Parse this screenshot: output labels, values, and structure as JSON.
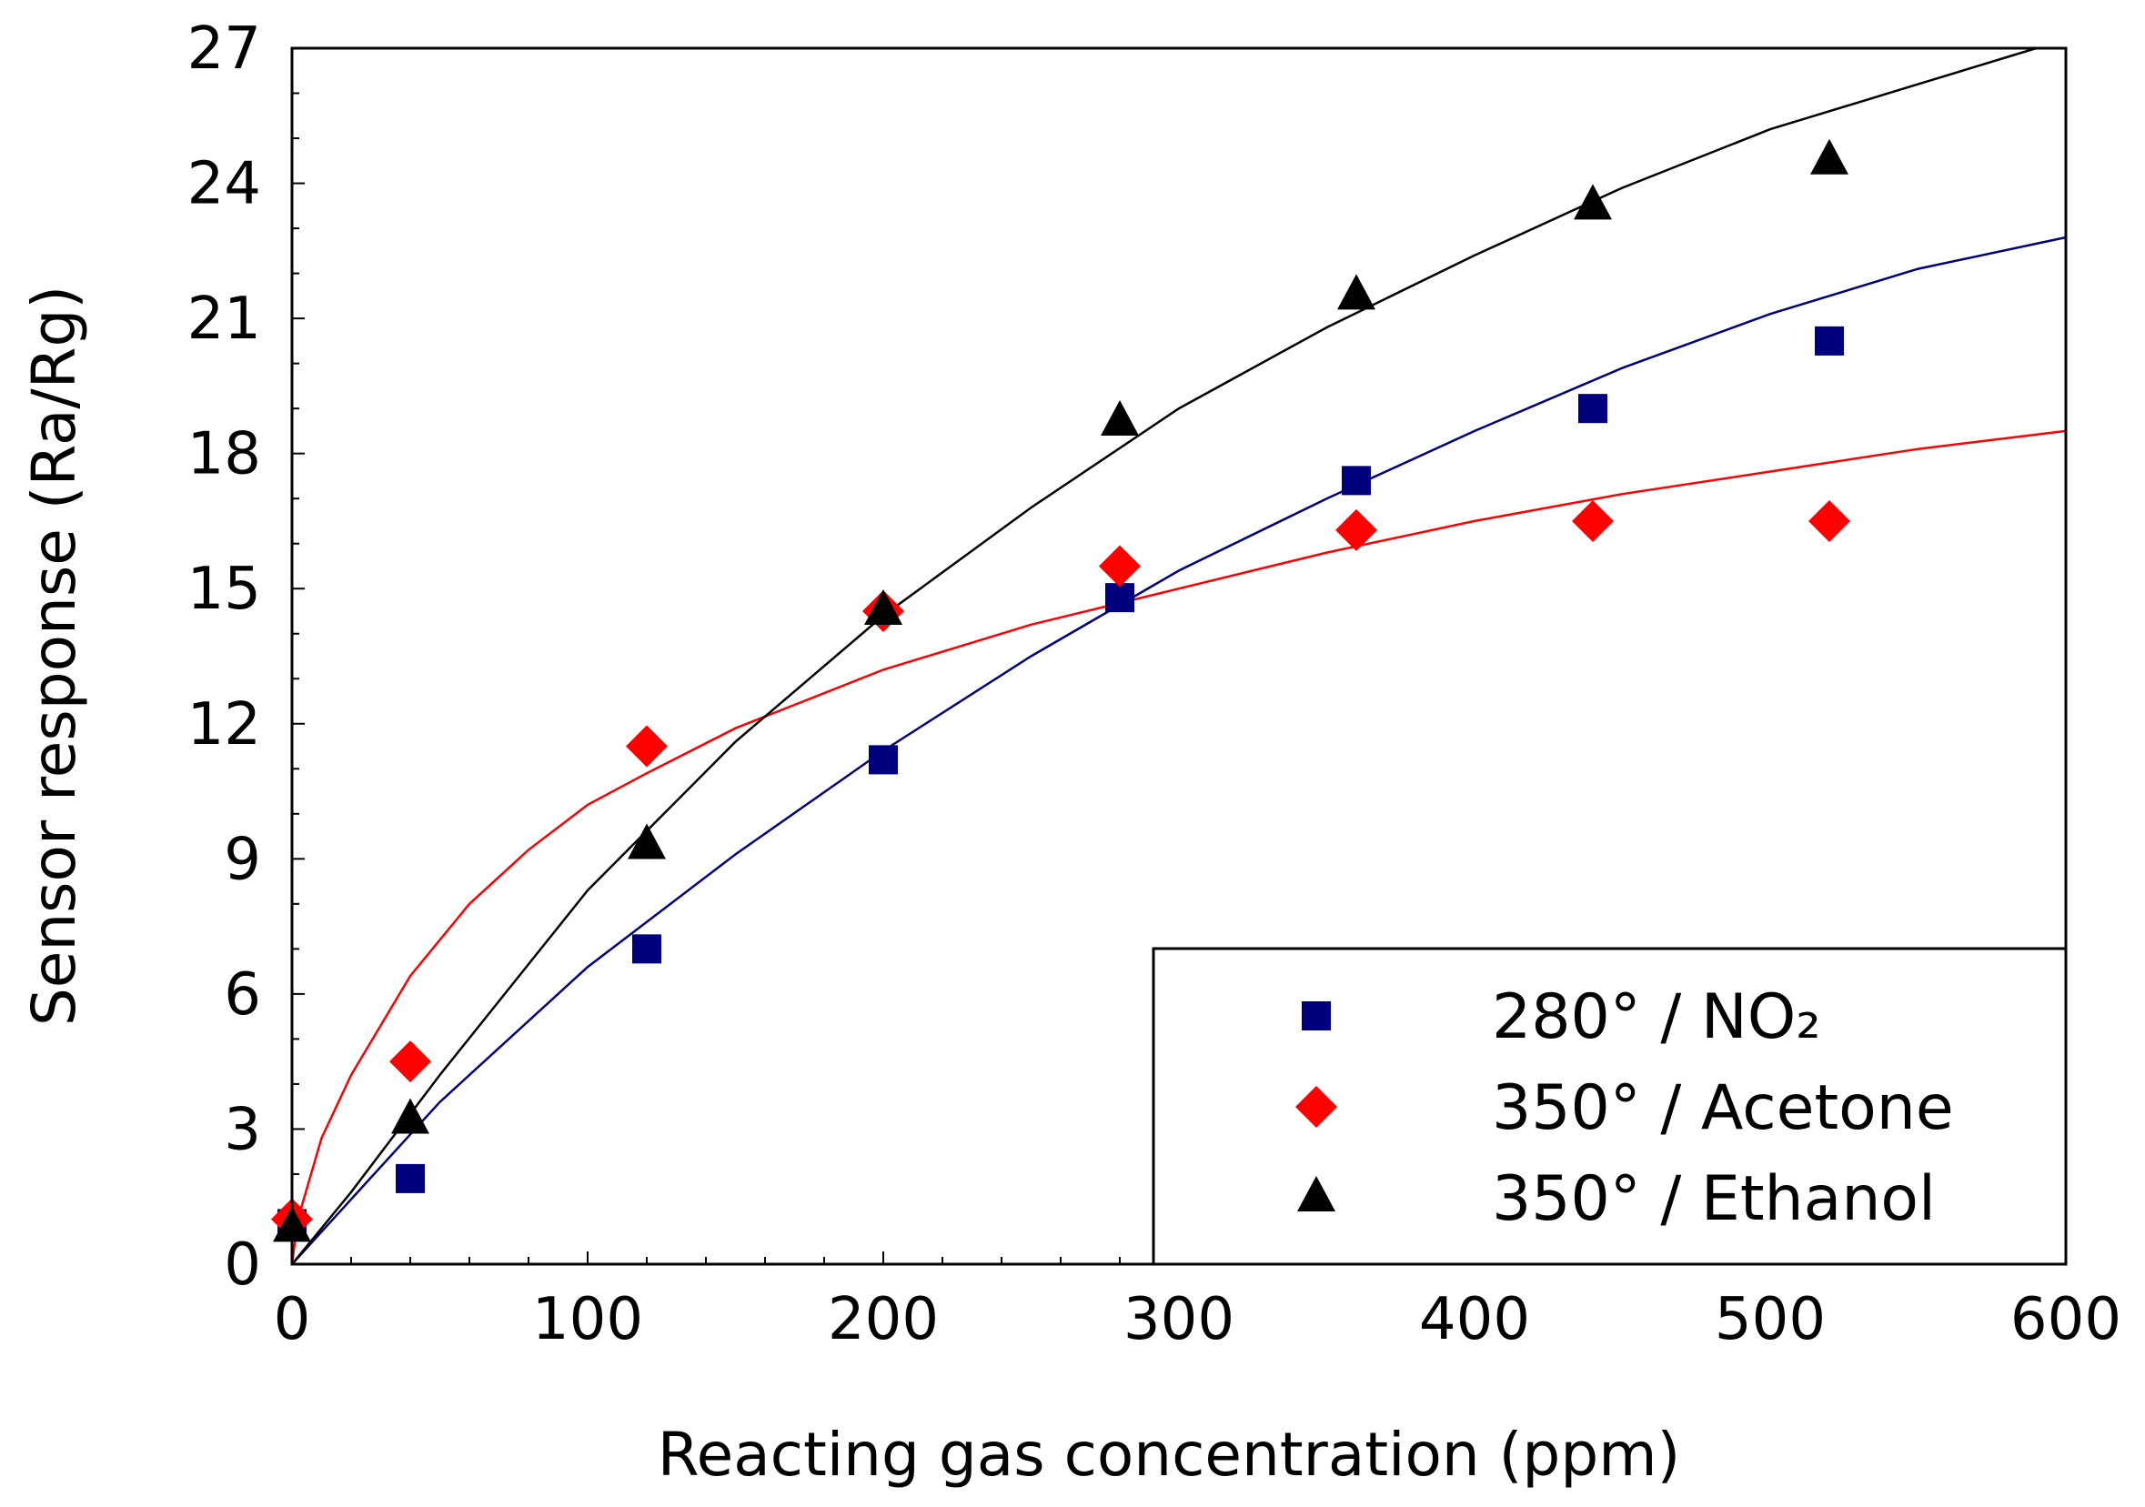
{
  "chart_data": {
    "type": "scatter",
    "title": "",
    "xlabel": "Reacting gas concentration (ppm)",
    "ylabel": "Sensor response (Ra/Rg)",
    "xlim": [
      0,
      600
    ],
    "ylim": [
      0,
      27
    ],
    "xticks": [
      "0",
      "100",
      "200",
      "300",
      "400",
      "500",
      "600"
    ],
    "yticks": [
      "0",
      "3",
      "6",
      "9",
      "12",
      "15",
      "18",
      "21",
      "24",
      "27"
    ],
    "legend_position": "bottom-right",
    "series": [
      {
        "name": "280° / NO₂",
        "marker": "square",
        "color": "#00007f",
        "x": [
          0,
          40,
          120,
          200,
          280,
          360,
          440,
          520
        ],
        "y": [
          0.9,
          1.9,
          7.0,
          11.2,
          14.8,
          17.4,
          19.0,
          20.5
        ],
        "fit": [
          [
            0,
            0.0
          ],
          [
            50,
            3.6
          ],
          [
            100,
            6.6
          ],
          [
            150,
            9.1
          ],
          [
            200,
            11.4
          ],
          [
            250,
            13.5
          ],
          [
            300,
            15.4
          ],
          [
            350,
            17.0
          ],
          [
            400,
            18.5
          ],
          [
            450,
            19.9
          ],
          [
            500,
            21.1
          ],
          [
            550,
            22.1
          ],
          [
            600,
            22.8
          ]
        ]
      },
      {
        "name": "350° / Acetone",
        "marker": "diamond",
        "color": "#ff0000",
        "x": [
          0,
          40,
          120,
          200,
          280,
          360,
          440,
          520
        ],
        "y": [
          1.0,
          4.5,
          11.5,
          14.5,
          15.5,
          16.3,
          16.5,
          16.5
        ],
        "fit": [
          [
            0,
            0.0
          ],
          [
            2,
            1.0
          ],
          [
            10,
            2.8
          ],
          [
            20,
            4.2
          ],
          [
            40,
            6.4
          ],
          [
            60,
            8.0
          ],
          [
            80,
            9.2
          ],
          [
            100,
            10.2
          ],
          [
            120,
            10.9
          ],
          [
            150,
            11.9
          ],
          [
            200,
            13.2
          ],
          [
            250,
            14.2
          ],
          [
            300,
            15.0
          ],
          [
            350,
            15.8
          ],
          [
            400,
            16.5
          ],
          [
            450,
            17.1
          ],
          [
            500,
            17.6
          ],
          [
            550,
            18.1
          ],
          [
            600,
            18.5
          ]
        ]
      },
      {
        "name": "350° / Ethanol",
        "marker": "triangle",
        "color": "#000000",
        "x": [
          0,
          40,
          120,
          200,
          280,
          360,
          440,
          520
        ],
        "y": [
          0.8,
          3.2,
          9.3,
          14.5,
          18.7,
          21.5,
          23.5,
          24.5
        ],
        "fit": [
          [
            0,
            0.0
          ],
          [
            20,
            1.6
          ],
          [
            50,
            4.2
          ],
          [
            100,
            8.3
          ],
          [
            150,
            11.6
          ],
          [
            200,
            14.4
          ],
          [
            250,
            16.8
          ],
          [
            300,
            19.0
          ],
          [
            350,
            20.8
          ],
          [
            400,
            22.4
          ],
          [
            450,
            23.9
          ],
          [
            500,
            25.2
          ],
          [
            550,
            26.2
          ],
          [
            590,
            27.0
          ]
        ]
      }
    ]
  }
}
